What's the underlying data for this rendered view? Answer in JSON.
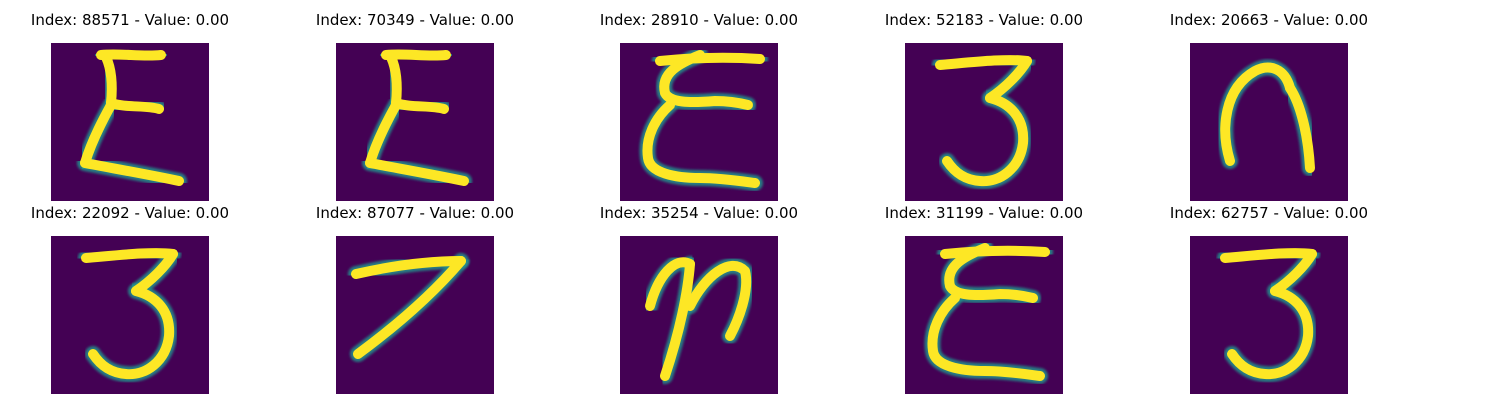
{
  "figure": {
    "colormap": "viridis",
    "background_color": "#440154",
    "stroke_color": "#fde725",
    "panels": [
      {
        "title": "Index: 88571 - Value: 0.00",
        "glyph": "epsilon-like-E"
      },
      {
        "title": "Index: 70349 - Value: 0.00",
        "glyph": "epsilon-like-E"
      },
      {
        "title": "Index: 28910 - Value: 0.00",
        "glyph": "loopy-E"
      },
      {
        "title": "Index: 52183 - Value: 0.00",
        "glyph": "digit-3"
      },
      {
        "title": "Index: 20663 - Value: 0.00",
        "glyph": "arch"
      },
      {
        "title": "Index: 22092 - Value: 0.00",
        "glyph": "digit-3"
      },
      {
        "title": "Index: 87077 - Value: 0.00",
        "glyph": "rotated-7"
      },
      {
        "title": "Index: 35254 - Value: 0.00",
        "glyph": "digit-2"
      },
      {
        "title": "Index: 31199 - Value: 0.00",
        "glyph": "loopy-E"
      },
      {
        "title": "Index: 62757 - Value: 0.00",
        "glyph": "digit-3"
      }
    ]
  }
}
